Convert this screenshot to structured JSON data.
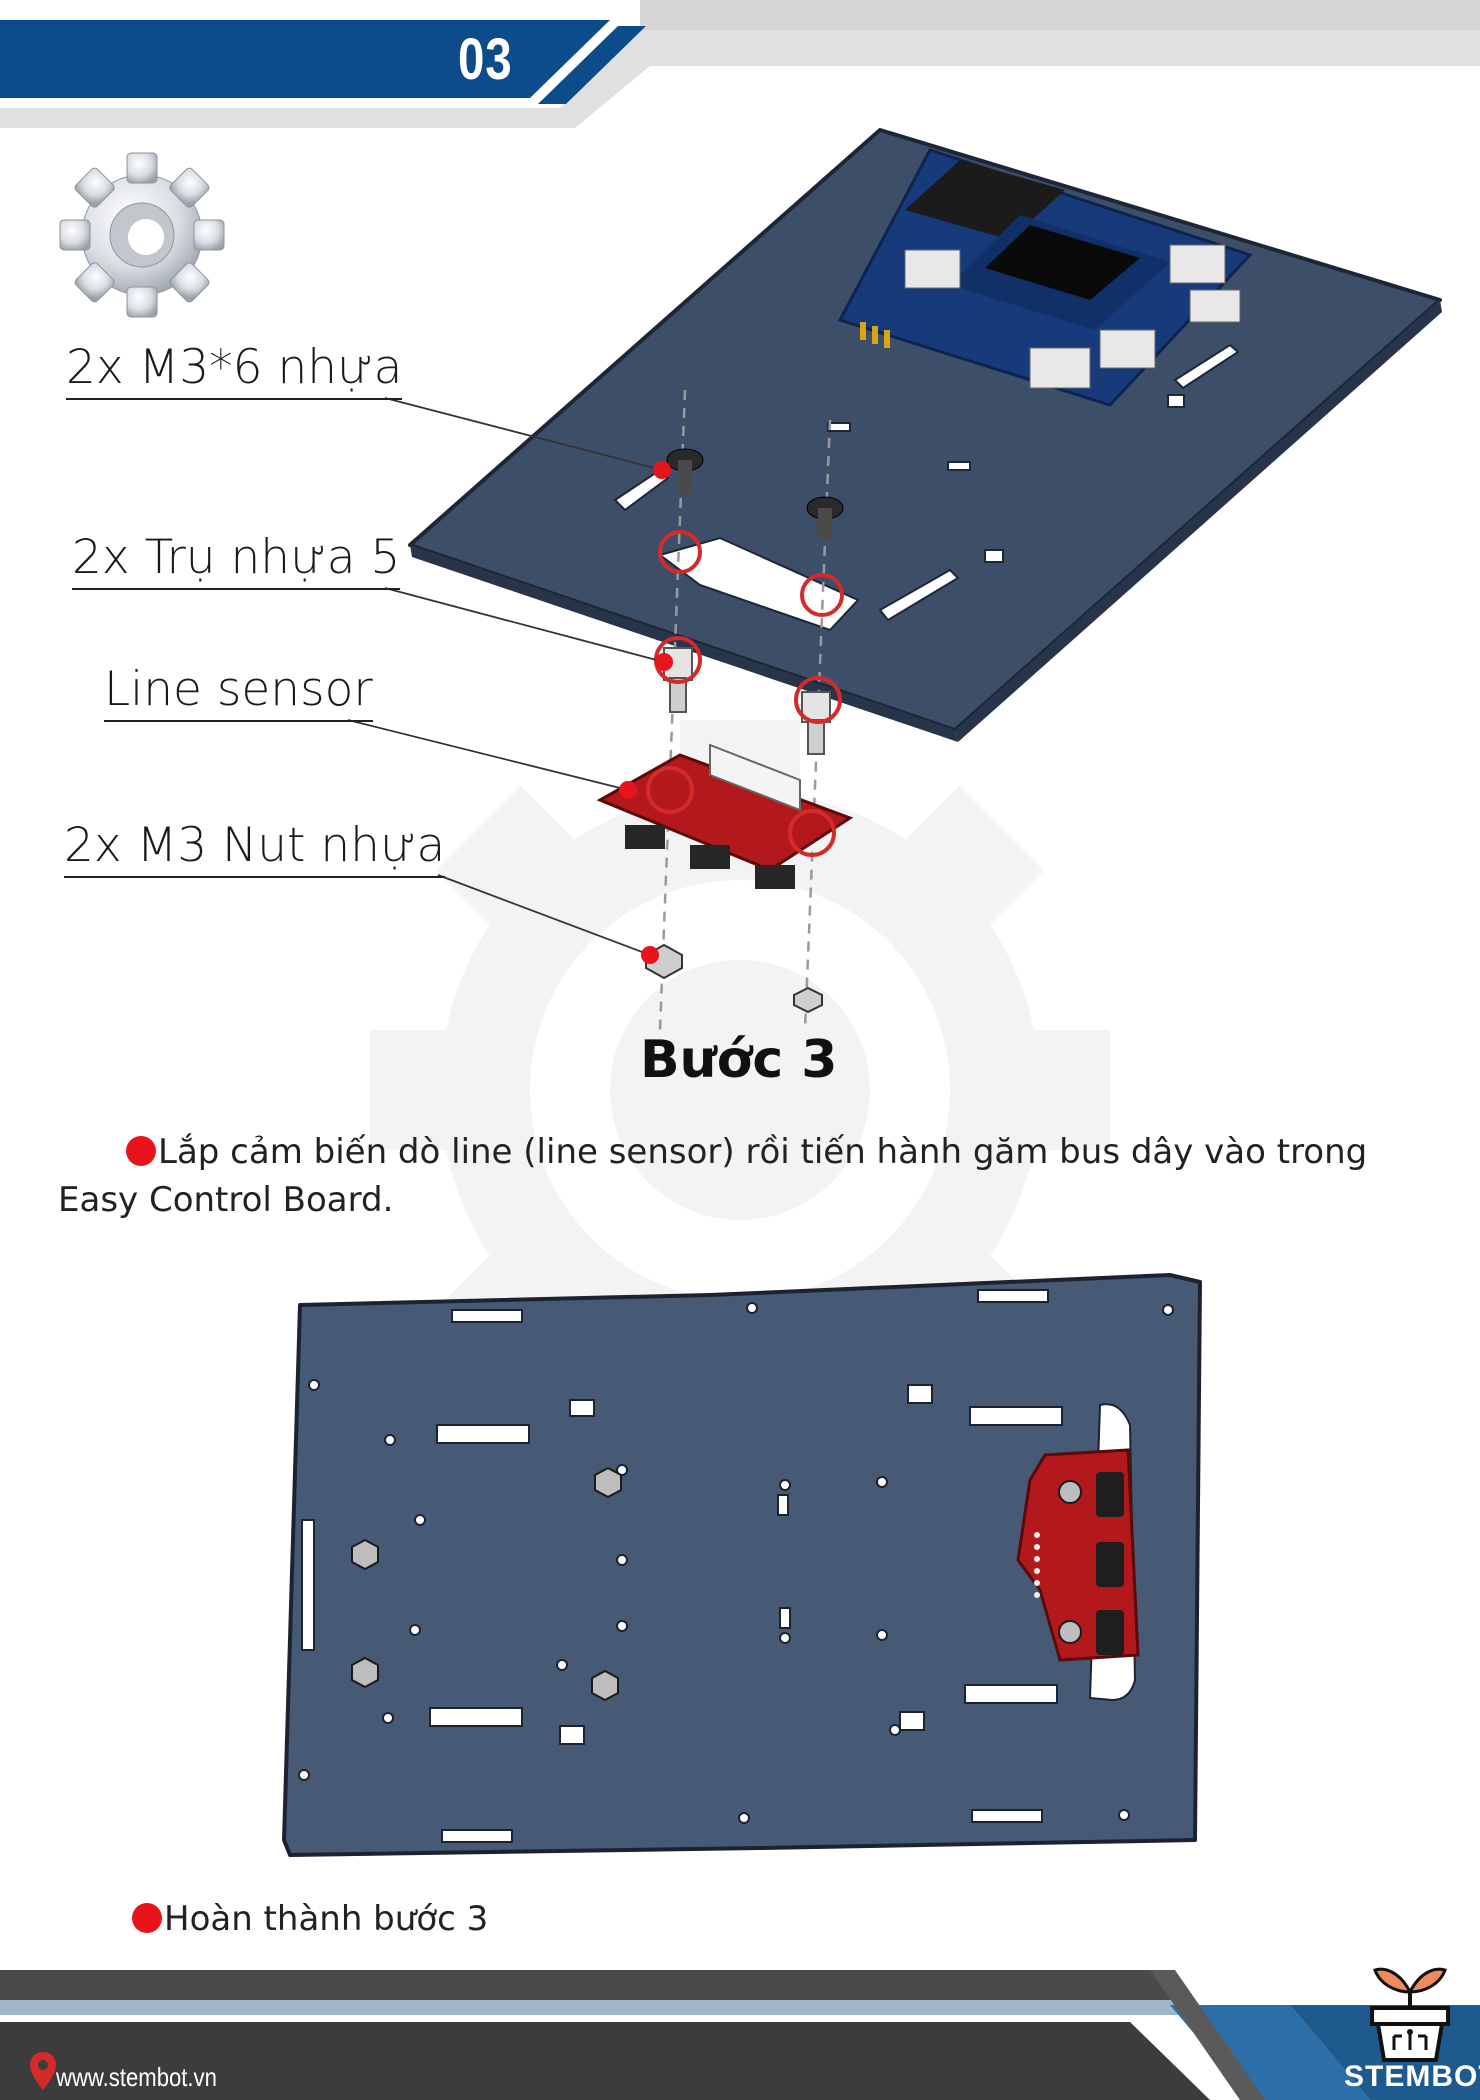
{
  "header": {
    "page_number": "03"
  },
  "diagram": {
    "callouts": [
      {
        "label": "2x M3*6 nhựa"
      },
      {
        "label": "2x Trụ nhựa 5"
      },
      {
        "label": "Line sensor"
      },
      {
        "label": "2x M3 Nut nhựa"
      }
    ],
    "step_title": "Bước 3"
  },
  "instructions": {
    "text": "Lắp cảm biến dò line (line sensor) rồi tiến hành găm bus dây vào trong Easy Control Board.",
    "completion_text": "Hoàn thành bước 3"
  },
  "footer": {
    "url": "www.stembot.vn",
    "brand": "STEMBOT",
    "icons": [
      "location-pin-icon",
      "plant-logo-icon"
    ]
  },
  "colors": {
    "header_blue": "#0d4c8a",
    "board_slate": "#465a75",
    "sensor_red": "#b3191c",
    "bullet_red": "#e8141c",
    "footer_dark": "#3c3c3c"
  }
}
